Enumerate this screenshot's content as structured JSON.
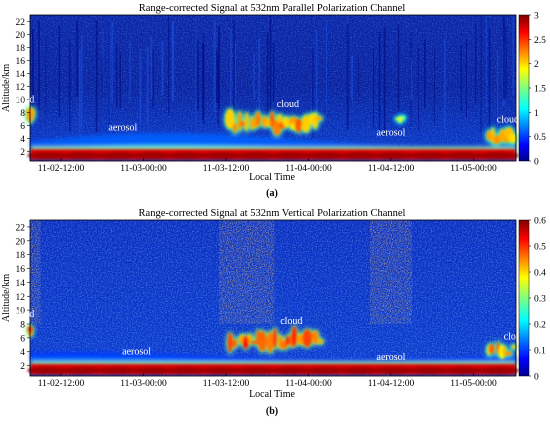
{
  "figure": {
    "panels": [
      {
        "caption": "(a)"
      },
      {
        "caption": "(b)"
      }
    ]
  },
  "chart_data": [
    {
      "type": "heatmap",
      "panel": "a",
      "title": "Range-corrected Signal at 532nm Parallel Polarization Channel",
      "xlabel": "Local Time",
      "ylabel": "Altitude/km",
      "x_ticks": [
        "11-02-12:00",
        "11-03-00:00",
        "11-03-12:00",
        "11-04-00:00",
        "11-04-12:00",
        "11-05-00:00"
      ],
      "y_ticks": [
        2,
        4,
        6,
        8,
        10,
        12,
        14,
        16,
        18,
        20,
        22
      ],
      "ylim": [
        0.5,
        23
      ],
      "colorbar": {
        "min": 0,
        "max": 3,
        "ticks": [
          0,
          0.5,
          1,
          1.5,
          2,
          2.5,
          3
        ],
        "tick_labels": [
          "0",
          "0.5",
          "1",
          "1.5",
          "2",
          "2.5",
          "3"
        ],
        "colormap": "jet"
      },
      "annotations": [
        {
          "text": "cloud",
          "x": "11-02-06:30",
          "y": 9.5
        },
        {
          "text": "aerosol",
          "x": "11-02-21:00",
          "y": 5.2
        },
        {
          "text": "cloud",
          "x": "11-03-21:00",
          "y": 8.8
        },
        {
          "text": "aerosol",
          "x": "11-04-12:00",
          "y": 4.4
        },
        {
          "text": "cloud",
          "x": "11-05-05:00",
          "y": 6.4
        }
      ],
      "features": [
        {
          "kind": "cloud",
          "t_start": "11-02-05:00",
          "t_end": "11-02-07:30",
          "z_min": 6.2,
          "z_max": 8.6,
          "intensity": 2.3
        },
        {
          "kind": "cloud",
          "t_start": "11-03-12:30",
          "t_end": "11-04-02:00",
          "z_min": 4.8,
          "z_max": 7.8,
          "intensity": 2.3
        },
        {
          "kind": "cloud",
          "t_start": "11-04-13:00",
          "t_end": "11-04-14:00",
          "z_min": 6.6,
          "z_max": 7.4,
          "intensity": 1.8
        },
        {
          "kind": "cloud",
          "t_start": "11-05-02:00",
          "t_end": "11-05-10:00",
          "z_min": 3.0,
          "z_max": 5.6,
          "intensity": 2.1
        },
        {
          "kind": "aerosol",
          "t_start": "11-02-05:00",
          "t_end": "11-05-10:00",
          "z_min": 1.5,
          "z_max": 5.0,
          "intensity": 1.2
        },
        {
          "kind": "boundary-layer",
          "t_start": "11-02-05:00",
          "t_end": "11-05-10:00",
          "z_min": 0.7,
          "z_max": 2.3,
          "intensity": 3.0
        }
      ]
    },
    {
      "type": "heatmap",
      "panel": "b",
      "title": "Range-corrected Signal at 532nm Vertical Polarization Channel",
      "xlabel": "Local Time",
      "ylabel": "Altitude/km",
      "x_ticks": [
        "11-02-12:00",
        "11-03-00:00",
        "11-03-12:00",
        "11-04-00:00",
        "11-04-12:00",
        "11-05-00:00"
      ],
      "y_ticks": [
        2,
        4,
        6,
        8,
        10,
        12,
        14,
        16,
        18,
        20,
        22
      ],
      "ylim": [
        0.5,
        23
      ],
      "colorbar": {
        "min": 0,
        "max": 0.6,
        "ticks": [
          0,
          0.1,
          0.2,
          0.3,
          0.4,
          0.5,
          0.6
        ],
        "tick_labels": [
          "0",
          "0.1",
          "0.2",
          "0.3",
          "0.4",
          "0.5",
          "0.6"
        ],
        "colormap": "jet"
      },
      "annotations": [
        {
          "text": "cloud",
          "x": "11-02-06:30",
          "y": 9.0
        },
        {
          "text": "aerosol",
          "x": "11-02-23:00",
          "y": 3.6
        },
        {
          "text": "cloud",
          "x": "11-03-21:30",
          "y": 8.0
        },
        {
          "text": "aerosol",
          "x": "11-04-12:00",
          "y": 2.8
        },
        {
          "text": "cloud",
          "x": "11-05-06:00",
          "y": 5.8
        }
      ],
      "features": [
        {
          "kind": "cloud",
          "t_start": "11-02-05:00",
          "t_end": "11-02-07:30",
          "z_min": 6.2,
          "z_max": 7.8,
          "intensity": 0.5
        },
        {
          "kind": "cloud",
          "t_start": "11-03-12:30",
          "t_end": "11-04-02:00",
          "z_min": 4.2,
          "z_max": 7.2,
          "intensity": 0.5
        },
        {
          "kind": "cloud",
          "t_start": "11-05-02:00",
          "t_end": "11-05-10:00",
          "z_min": 3.2,
          "z_max": 5.2,
          "intensity": 0.45
        },
        {
          "kind": "aerosol",
          "t_start": "11-02-05:00",
          "t_end": "11-05-10:00",
          "z_min": 2.2,
          "z_max": 4.0,
          "intensity": 0.2
        },
        {
          "kind": "boundary-layer",
          "t_start": "11-02-05:00",
          "t_end": "11-05-10:00",
          "z_min": 0.7,
          "z_max": 2.2,
          "intensity": 0.6
        },
        {
          "kind": "noise-column",
          "t_start": "11-02-05:00",
          "t_end": "11-02-09:00",
          "z_min": 8,
          "z_max": 23,
          "intensity": 0.35
        },
        {
          "kind": "noise-column",
          "t_start": "11-03-11:00",
          "t_end": "11-03-19:00",
          "z_min": 8,
          "z_max": 23,
          "intensity": 0.35
        },
        {
          "kind": "noise-column",
          "t_start": "11-04-09:00",
          "t_end": "11-04-15:00",
          "z_min": 8,
          "z_max": 23,
          "intensity": 0.35
        }
      ]
    }
  ]
}
